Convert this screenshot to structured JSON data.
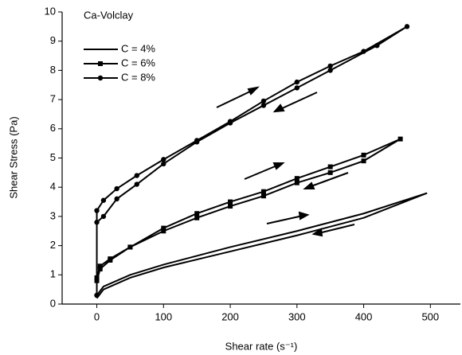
{
  "chart_data": {
    "type": "line",
    "annotation": "Ca-Volclay",
    "x_label": "Shear rate (s⁻¹)",
    "y_label": "Shear Stress (Pa)",
    "xlim": [
      -52,
      545
    ],
    "ylim": [
      0,
      10
    ],
    "xticks": [
      0,
      100,
      200,
      300,
      400,
      500
    ],
    "yticks": [
      0,
      1,
      2,
      3,
      4,
      5,
      6,
      7,
      8,
      9,
      10
    ],
    "legend": "upper left",
    "series": [
      {
        "name": "C = 4%",
        "color": "#000000",
        "marker": "none",
        "x": [
          0,
          10,
          50,
          100,
          200,
          300,
          400,
          495,
          400,
          300,
          200,
          100,
          50,
          10,
          0
        ],
        "values": [
          0.3,
          0.6,
          1.0,
          1.35,
          1.95,
          2.5,
          3.1,
          3.8,
          2.95,
          2.35,
          1.8,
          1.25,
          0.9,
          0.5,
          0.2
        ]
      },
      {
        "name": "C = 6%",
        "color": "#000000",
        "marker": "square",
        "x": [
          0,
          5,
          20,
          50,
          100,
          150,
          200,
          250,
          300,
          350,
          400,
          455,
          400,
          350,
          300,
          250,
          200,
          150,
          100,
          50,
          20,
          5,
          0
        ],
        "values": [
          0.8,
          1.2,
          1.5,
          1.95,
          2.6,
          3.1,
          3.5,
          3.85,
          4.3,
          4.7,
          5.1,
          5.65,
          4.9,
          4.5,
          4.15,
          3.7,
          3.35,
          2.95,
          2.5,
          1.95,
          1.55,
          1.3,
          0.9
        ]
      },
      {
        "name": "C = 8%",
        "color": "#000000",
        "marker": "circle",
        "x": [
          0,
          0,
          10,
          30,
          60,
          100,
          150,
          200,
          250,
          300,
          350,
          400,
          465,
          420,
          350,
          300,
          250,
          200,
          150,
          100,
          60,
          30,
          10,
          0,
          0
        ],
        "values": [
          0.3,
          3.2,
          3.55,
          3.95,
          4.4,
          4.95,
          5.6,
          6.25,
          6.95,
          7.6,
          8.15,
          8.65,
          9.5,
          8.85,
          8.0,
          7.4,
          6.8,
          6.2,
          5.55,
          4.8,
          4.1,
          3.6,
          3.0,
          2.8,
          0.3
        ]
      }
    ]
  }
}
